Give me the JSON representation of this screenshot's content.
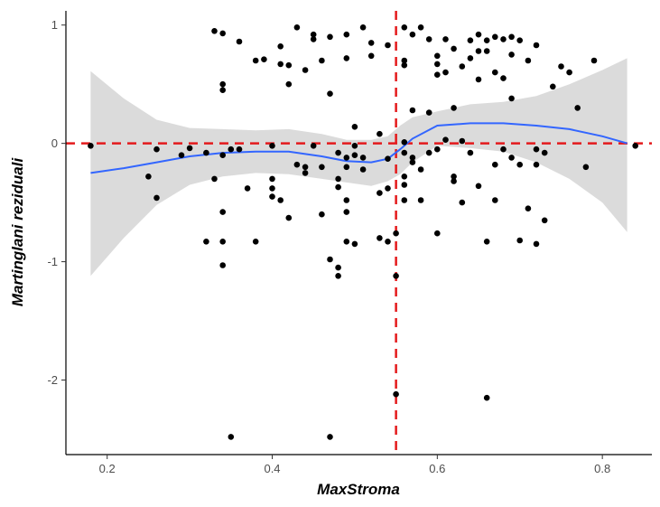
{
  "chart_data": {
    "type": "scatter",
    "title": "",
    "xlabel": "MaxStroma",
    "ylabel": "Martinglani reziduali",
    "xlim": [
      0.15,
      0.86
    ],
    "ylim": [
      -2.63,
      1.12
    ],
    "x_ticks": [
      0.2,
      0.4,
      0.6,
      0.8
    ],
    "x_tick_labels": [
      "0.2",
      "0.4",
      "0.6",
      "0.8"
    ],
    "y_ticks": [
      -2,
      -1,
      0,
      1
    ],
    "y_tick_labels": [
      "-2",
      "-1",
      "0",
      "1"
    ],
    "grid": false,
    "legend": "none",
    "reference_lines": {
      "horizontal_y": 0,
      "vertical_x": 0.55,
      "color": "#e41a1c",
      "style": "dashed"
    },
    "colors": {
      "points": "#000000",
      "smooth": "#3366ff",
      "band": "#d9d9d9",
      "reference": "#e41a1c"
    },
    "smooth": {
      "x": [
        0.18,
        0.22,
        0.26,
        0.3,
        0.34,
        0.38,
        0.42,
        0.46,
        0.49,
        0.52,
        0.54,
        0.555,
        0.57,
        0.6,
        0.64,
        0.68,
        0.72,
        0.76,
        0.8,
        0.83
      ],
      "y": [
        -0.25,
        -0.21,
        -0.16,
        -0.11,
        -0.08,
        -0.07,
        -0.07,
        -0.11,
        -0.15,
        -0.16,
        -0.13,
        -0.05,
        0.04,
        0.15,
        0.17,
        0.17,
        0.15,
        0.12,
        0.06,
        0.0
      ],
      "lower": [
        -1.12,
        -0.8,
        -0.52,
        -0.35,
        -0.28,
        -0.25,
        -0.26,
        -0.3,
        -0.33,
        -0.36,
        -0.32,
        -0.26,
        -0.16,
        -0.02,
        -0.04,
        -0.07,
        -0.16,
        -0.3,
        -0.5,
        -0.75
      ],
      "upper": [
        0.61,
        0.38,
        0.2,
        0.13,
        0.12,
        0.11,
        0.12,
        0.08,
        0.03,
        0.03,
        0.06,
        0.15,
        0.22,
        0.27,
        0.33,
        0.35,
        0.4,
        0.5,
        0.62,
        0.72
      ]
    },
    "points": [
      [
        0.18,
        -0.02
      ],
      [
        0.25,
        -0.28
      ],
      [
        0.26,
        -0.46
      ],
      [
        0.26,
        -0.05
      ],
      [
        0.29,
        -0.1
      ],
      [
        0.3,
        -0.04
      ],
      [
        0.32,
        -0.08
      ],
      [
        0.32,
        -0.83
      ],
      [
        0.33,
        0.95
      ],
      [
        0.33,
        -0.3
      ],
      [
        0.34,
        0.93
      ],
      [
        0.34,
        0.5
      ],
      [
        0.34,
        0.45
      ],
      [
        0.34,
        -0.1
      ],
      [
        0.34,
        -0.58
      ],
      [
        0.34,
        -0.83
      ],
      [
        0.34,
        -1.03
      ],
      [
        0.35,
        -0.05
      ],
      [
        0.35,
        -2.48
      ],
      [
        0.36,
        0.86
      ],
      [
        0.36,
        -0.05
      ],
      [
        0.37,
        -0.38
      ],
      [
        0.38,
        0.7
      ],
      [
        0.38,
        -0.83
      ],
      [
        0.39,
        0.71
      ],
      [
        0.4,
        -0.3
      ],
      [
        0.4,
        -0.38
      ],
      [
        0.4,
        -0.45
      ],
      [
        0.4,
        -0.02
      ],
      [
        0.41,
        0.82
      ],
      [
        0.41,
        0.67
      ],
      [
        0.41,
        -0.48
      ],
      [
        0.42,
        0.66
      ],
      [
        0.42,
        0.5
      ],
      [
        0.42,
        -0.63
      ],
      [
        0.43,
        0.98
      ],
      [
        0.43,
        -0.18
      ],
      [
        0.44,
        0.62
      ],
      [
        0.44,
        -0.2
      ],
      [
        0.44,
        -0.25
      ],
      [
        0.45,
        0.92
      ],
      [
        0.45,
        0.88
      ],
      [
        0.45,
        -0.02
      ],
      [
        0.46,
        0.7
      ],
      [
        0.46,
        -0.2
      ],
      [
        0.46,
        -0.6
      ],
      [
        0.47,
        0.42
      ],
      [
        0.47,
        0.9
      ],
      [
        0.47,
        -0.98
      ],
      [
        0.47,
        -2.48
      ],
      [
        0.48,
        -0.08
      ],
      [
        0.48,
        -0.3
      ],
      [
        0.48,
        -0.37
      ],
      [
        0.48,
        -1.05
      ],
      [
        0.48,
        -1.12
      ],
      [
        0.49,
        0.72
      ],
      [
        0.49,
        0.92
      ],
      [
        0.49,
        -0.12
      ],
      [
        0.49,
        -0.2
      ],
      [
        0.49,
        -0.48
      ],
      [
        0.49,
        -0.58
      ],
      [
        0.49,
        -0.83
      ],
      [
        0.5,
        0.14
      ],
      [
        0.5,
        -0.02
      ],
      [
        0.5,
        -0.1
      ],
      [
        0.5,
        -0.85
      ],
      [
        0.51,
        0.98
      ],
      [
        0.51,
        -0.12
      ],
      [
        0.51,
        -0.22
      ],
      [
        0.52,
        0.85
      ],
      [
        0.52,
        0.74
      ],
      [
        0.53,
        0.08
      ],
      [
        0.53,
        -0.42
      ],
      [
        0.53,
        -0.8
      ],
      [
        0.54,
        0.83
      ],
      [
        0.54,
        -0.13
      ],
      [
        0.54,
        -0.38
      ],
      [
        0.54,
        -0.83
      ],
      [
        0.55,
        -0.76
      ],
      [
        0.55,
        -2.12
      ],
      [
        0.55,
        -1.12
      ],
      [
        0.56,
        0.98
      ],
      [
        0.56,
        0.7
      ],
      [
        0.56,
        0.66
      ],
      [
        0.56,
        0.01
      ],
      [
        0.56,
        -0.08
      ],
      [
        0.56,
        -0.28
      ],
      [
        0.56,
        -0.35
      ],
      [
        0.56,
        -0.48
      ],
      [
        0.57,
        0.92
      ],
      [
        0.57,
        -0.12
      ],
      [
        0.57,
        -0.16
      ],
      [
        0.58,
        0.98
      ],
      [
        0.58,
        -0.22
      ],
      [
        0.58,
        -0.48
      ],
      [
        0.59,
        0.88
      ],
      [
        0.59,
        0.26
      ],
      [
        0.59,
        -0.08
      ],
      [
        0.6,
        0.74
      ],
      [
        0.6,
        0.67
      ],
      [
        0.6,
        0.58
      ],
      [
        0.6,
        -0.05
      ],
      [
        0.6,
        -0.76
      ],
      [
        0.61,
        0.88
      ],
      [
        0.61,
        0.6
      ],
      [
        0.61,
        0.03
      ],
      [
        0.62,
        0.8
      ],
      [
        0.62,
        0.3
      ],
      [
        0.62,
        -0.28
      ],
      [
        0.62,
        -0.32
      ],
      [
        0.63,
        0.65
      ],
      [
        0.63,
        0.02
      ],
      [
        0.63,
        -0.5
      ],
      [
        0.64,
        0.87
      ],
      [
        0.64,
        0.72
      ],
      [
        0.64,
        -0.08
      ],
      [
        0.65,
        0.92
      ],
      [
        0.65,
        0.78
      ],
      [
        0.65,
        0.54
      ],
      [
        0.65,
        -0.36
      ],
      [
        0.66,
        0.87
      ],
      [
        0.66,
        0.78
      ],
      [
        0.66,
        -0.83
      ],
      [
        0.66,
        -2.15
      ],
      [
        0.67,
        0.9
      ],
      [
        0.67,
        0.6
      ],
      [
        0.67,
        -0.18
      ],
      [
        0.67,
        -0.48
      ],
      [
        0.68,
        0.88
      ],
      [
        0.68,
        0.55
      ],
      [
        0.68,
        -0.05
      ],
      [
        0.69,
        0.9
      ],
      [
        0.69,
        0.75
      ],
      [
        0.69,
        0.38
      ],
      [
        0.69,
        -0.12
      ],
      [
        0.7,
        0.87
      ],
      [
        0.7,
        -0.18
      ],
      [
        0.7,
        -0.82
      ],
      [
        0.71,
        0.7
      ],
      [
        0.72,
        0.83
      ],
      [
        0.72,
        -0.05
      ],
      [
        0.72,
        -0.18
      ],
      [
        0.72,
        -0.85
      ],
      [
        0.73,
        -0.08
      ],
      [
        0.74,
        0.48
      ],
      [
        0.75,
        0.65
      ],
      [
        0.76,
        0.6
      ],
      [
        0.77,
        0.3
      ],
      [
        0.78,
        -0.2
      ],
      [
        0.79,
        0.7
      ],
      [
        0.84,
        -0.02
      ],
      [
        0.57,
        0.28
      ],
      [
        0.73,
        -0.65
      ],
      [
        0.71,
        -0.55
      ]
    ]
  }
}
